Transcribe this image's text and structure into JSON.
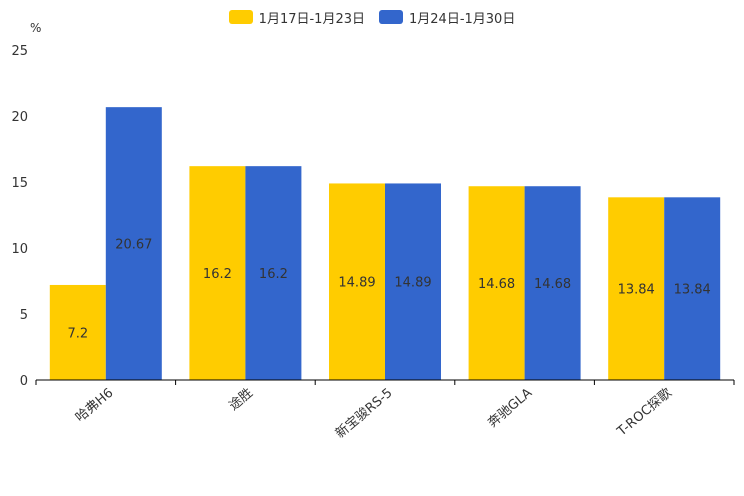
{
  "chart_data": {
    "type": "bar",
    "unit": "%",
    "categories": [
      "哈弗H6",
      "途胜",
      "新宝骏RS-5",
      "奔驰GLA",
      "T-ROC探歌"
    ],
    "series": [
      {
        "name": "1月17日-1月23日",
        "color": "#FFCC00",
        "values": [
          7.2,
          16.2,
          14.89,
          14.68,
          13.84
        ]
      },
      {
        "name": "1月24日-1月30日",
        "color": "#3366CC",
        "values": [
          20.67,
          16.2,
          14.89,
          14.68,
          13.84
        ]
      }
    ],
    "ylim": [
      0,
      25
    ],
    "yticks": [
      0,
      5,
      10,
      15,
      20,
      25
    ],
    "legend_position": "top-center",
    "grid": false
  }
}
